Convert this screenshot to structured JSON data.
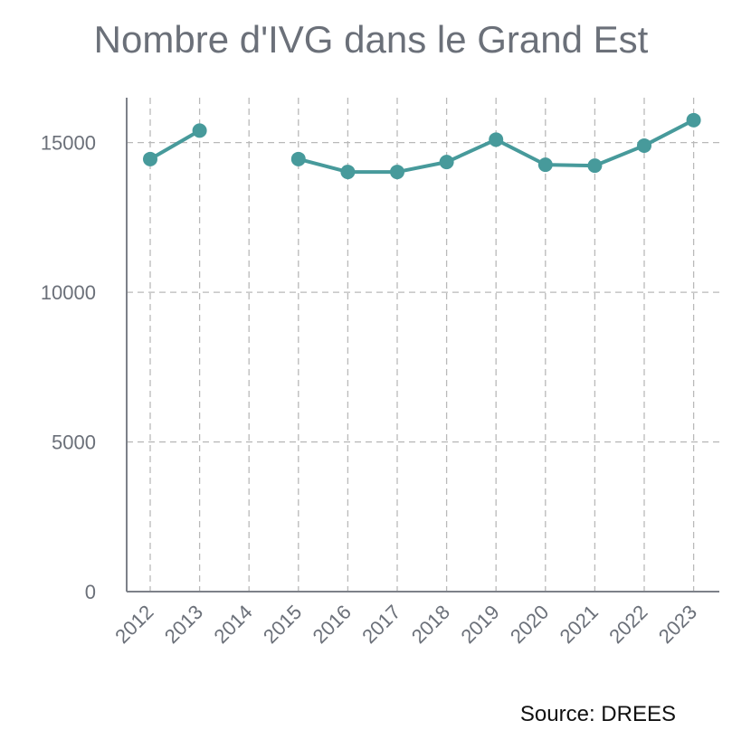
{
  "chart_data": {
    "type": "line",
    "title": "Nombre d'IVG dans le Grand Est",
    "source": "Source: DREES",
    "xlabel": "",
    "ylabel": "",
    "categories": [
      "2012",
      "2013",
      "2014",
      "2015",
      "2016",
      "2017",
      "2018",
      "2019",
      "2020",
      "2021",
      "2022",
      "2023"
    ],
    "series": [
      {
        "values": [
          14450,
          15400,
          null,
          14450,
          14020,
          14020,
          14350,
          15100,
          14260,
          14230,
          14900,
          15750
        ],
        "color": "#479a9b"
      }
    ],
    "ylim": [
      0,
      16500
    ],
    "yticks": [
      0,
      5000,
      10000,
      15000
    ],
    "grid": true,
    "legend": "none"
  }
}
